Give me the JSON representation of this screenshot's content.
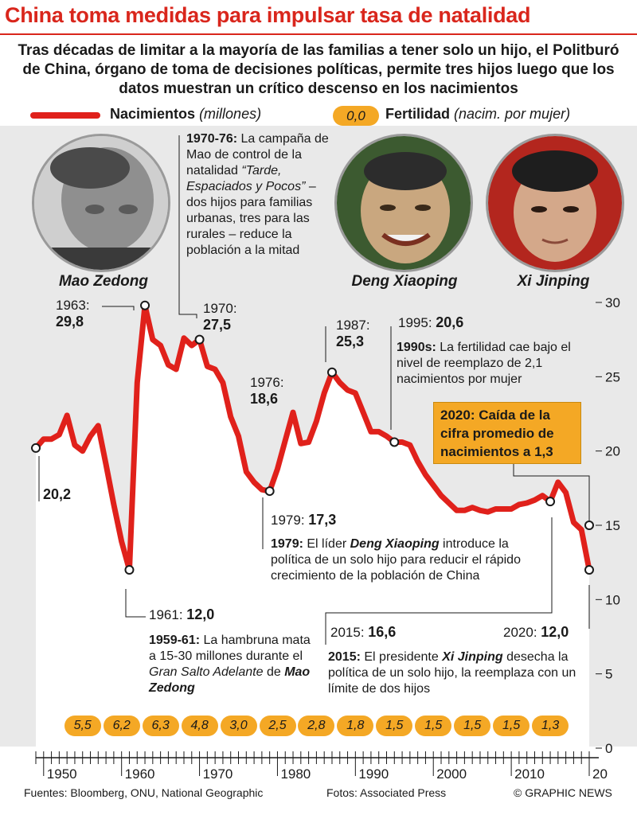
{
  "header": {
    "title": "China toma medidas para impulsar tasa de natalidad",
    "subtitle": "Tras décadas de limitar a la mayoría de las familias a tener solo un hijo, el Politburó de China, órgano de toma de decisiones políticas, permite tres hijos luego que los datos muestran un crítico descenso en los nacimientos"
  },
  "legend": {
    "births_label": "Nacimientos",
    "births_unit": "(millones)",
    "fertility_sample": "0,0",
    "fertility_label": "Fertilidad",
    "fertility_unit": "(nacim. por mujer)"
  },
  "portraits": [
    {
      "name": "Mao Zedong"
    },
    {
      "name": "Deng Xiaoping"
    },
    {
      "name": "Xi Jinping"
    }
  ],
  "notes": {
    "n1970_head": "1970-76:",
    "n1970_text1": " La campaña de Mao de control de la natalidad ",
    "n1970_quote": "“Tarde, Espaciados y Pocos”",
    "n1970_text2": " – dos hijos para familias urbanas, tres para las rurales – reduce la población a la mitad",
    "n1990_head": "1990s:",
    "n1990_text": " La fertilidad cae bajo el nivel de reemplazo de 2,1 nacimientos por mujer",
    "callout_2020": "2020: Caída de la cifra promedio de nacimientos a 1,3",
    "n1979_head": "1979:",
    "n1979_text1": " El líder ",
    "n1979_name": "Deng Xiaoping",
    "n1979_text2": " introduce la política de un solo hijo para reducir el rápido crecimiento de la población de China",
    "n1959_head": "1959-61:",
    "n1959_text1": " La hambruna mata a 15-30 millones durante el ",
    "n1959_italic": "Gran Salto Adelante",
    "n1959_text2": " de ",
    "n1959_name": "Mao Zedong",
    "n2015_head": "2015:",
    "n2015_text1": " El presidente ",
    "n2015_name": "Xi Jinping",
    "n2015_text2": " desecha la política de un solo hijo, la reemplaza con un límite de dos hijos"
  },
  "annotations": [
    {
      "year": "1963:",
      "value": "29,8"
    },
    {
      "year": "1970:",
      "value": "27,5"
    },
    {
      "year": "1976:",
      "value": "18,6"
    },
    {
      "year": "1987:",
      "value": "25,3"
    },
    {
      "year": "1995:",
      "value": "20,6"
    },
    {
      "year": "",
      "value": "20,2"
    },
    {
      "year": "1979:",
      "value": "17,3"
    },
    {
      "year": "1961:",
      "value": "12,0"
    },
    {
      "year": "2015:",
      "value": "16,6"
    },
    {
      "year": "2020:",
      "value": "12,0"
    }
  ],
  "chart_data": {
    "type": "line",
    "series": [
      {
        "name": "Nacimientos",
        "x": [
          1949,
          1950,
          1951,
          1952,
          1953,
          1954,
          1955,
          1956,
          1957,
          1958,
          1959,
          1960,
          1961,
          1962,
          1963,
          1964,
          1965,
          1966,
          1967,
          1968,
          1969,
          1970,
          1971,
          1972,
          1973,
          1974,
          1975,
          1976,
          1977,
          1978,
          1979,
          1980,
          1981,
          1982,
          1983,
          1984,
          1985,
          1986,
          1987,
          1988,
          1989,
          1990,
          1991,
          1992,
          1993,
          1994,
          1995,
          1996,
          1997,
          1998,
          1999,
          2000,
          2001,
          2002,
          2003,
          2004,
          2005,
          2006,
          2007,
          2008,
          2009,
          2010,
          2011,
          2012,
          2013,
          2014,
          2015,
          2016,
          2017,
          2018,
          2019,
          2020
        ],
        "y": [
          20.2,
          20.8,
          20.8,
          21.1,
          22.4,
          20.4,
          20.0,
          21.0,
          21.7,
          19.1,
          16.4,
          13.9,
          12.0,
          24.6,
          29.8,
          27.5,
          27.1,
          25.8,
          25.5,
          27.6,
          27.1,
          27.5,
          25.7,
          25.5,
          24.6,
          22.3,
          21.0,
          18.6,
          17.9,
          17.4,
          17.3,
          18.8,
          20.7,
          22.6,
          20.5,
          20.6,
          22.0,
          23.9,
          25.3,
          24.6,
          24.1,
          23.9,
          22.6,
          21.3,
          21.3,
          21.0,
          20.6,
          20.6,
          20.4,
          19.3,
          18.4,
          17.7,
          17.0,
          16.5,
          16.0,
          16.0,
          16.2,
          16.0,
          15.9,
          16.1,
          16.1,
          16.1,
          16.4,
          16.5,
          16.7,
          17.0,
          16.6,
          17.9,
          17.2,
          15.2,
          14.7,
          12.0
        ]
      }
    ],
    "fertility": {
      "decades": [
        1955,
        1960,
        1965,
        1970,
        1975,
        1980,
        1985,
        1990,
        1995,
        2000,
        2005,
        2010,
        2015
      ],
      "values": [
        "5,5",
        "6,2",
        "6,3",
        "4,8",
        "3,0",
        "2,5",
        "2,8",
        "1,8",
        "1,5",
        "1,5",
        "1,5",
        "1,5",
        "1,3"
      ]
    },
    "famine_period": [
      1959,
      1961
    ],
    "xlim": [
      1949,
      2020
    ],
    "ylim": [
      0,
      30
    ],
    "x_ticks": [
      "1950",
      "1960",
      "1970",
      "1980",
      "1990",
      "2000",
      "2010",
      "20"
    ],
    "y_ticks": [
      "0",
      "5",
      "10",
      "15",
      "20",
      "25",
      "30"
    ],
    "colors": {
      "line": "#e0211b",
      "area": "#ffffff",
      "pill": "#f4a825",
      "famine": "#f4a27a"
    }
  },
  "footer": {
    "sources": "Fuentes: Bloomberg, ONU, National Geographic",
    "photos": "Fotos: Associated Press",
    "credit": "© GRAPHIC NEWS"
  }
}
